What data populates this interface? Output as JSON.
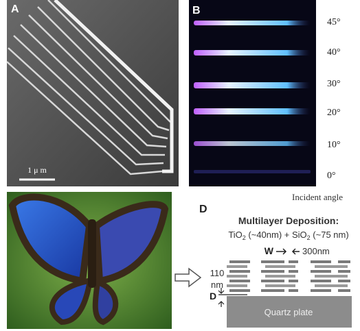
{
  "panel_a": {
    "label": "A",
    "scale_bar": "1 μ m"
  },
  "panel_b": {
    "label": "B",
    "angles": [
      "45°",
      "40°",
      "30°",
      "20°",
      "10°",
      "0°"
    ],
    "axis_label": "Incident angle"
  },
  "panel_d": {
    "label": "D",
    "title": "Multilayer Deposition:",
    "materials": [
      "TiO",
      "2",
      " (~40nm) + SiO",
      "2",
      " (~75 nm)"
    ],
    "width_label": "W",
    "period_label": "300nm",
    "layer_label": [
      "110",
      "nm"
    ],
    "depth_label": "D",
    "substrate": "Quartz plate"
  }
}
